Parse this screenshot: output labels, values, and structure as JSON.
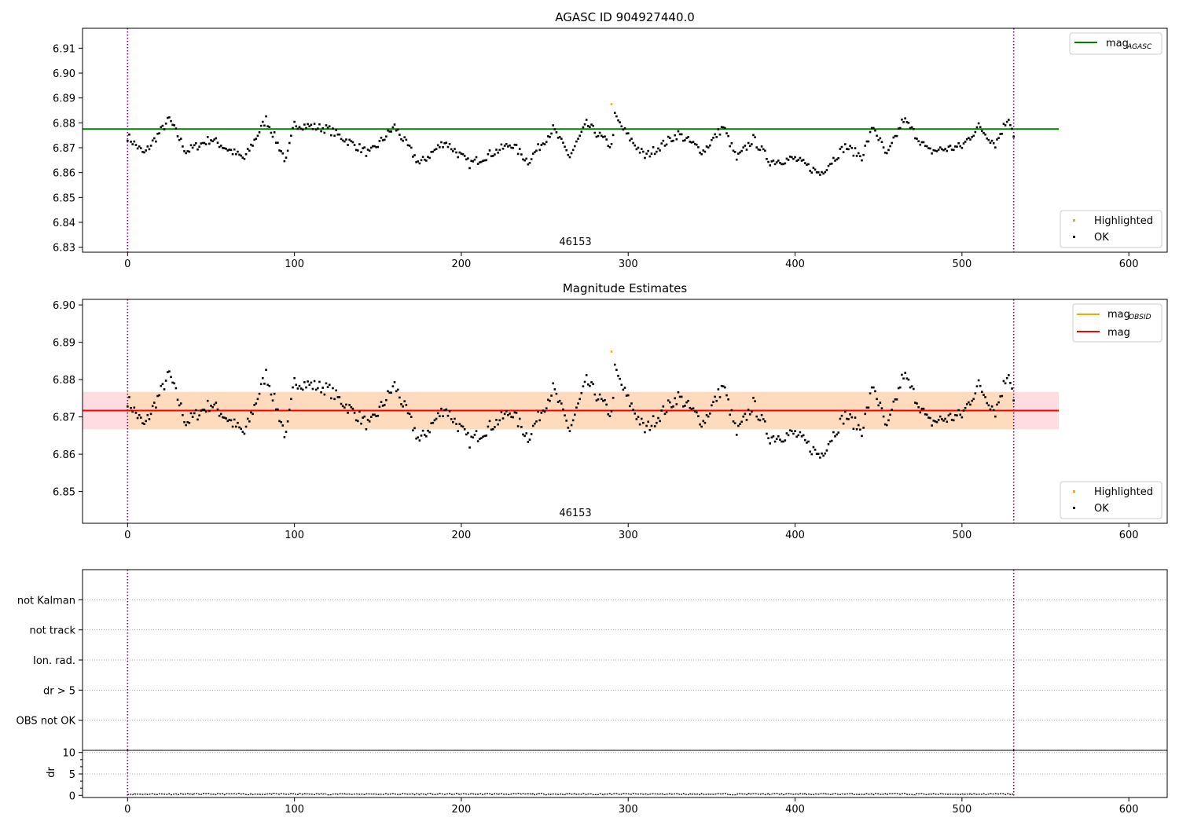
{
  "figure": {
    "background": "#ffffff"
  },
  "chart_data": [
    {
      "type": "scatter",
      "title": "AGASC ID 904927440.0",
      "xlim": [
        -27,
        623
      ],
      "ylim": [
        6.828,
        6.918
      ],
      "xticks": [
        0,
        100,
        200,
        300,
        400,
        500,
        600
      ],
      "yticks": [
        6.83,
        6.84,
        6.85,
        6.86,
        6.87,
        6.88,
        6.89,
        6.9,
        6.91
      ],
      "ytick_labels": [
        "6.83",
        "6.84",
        "6.85",
        "6.86",
        "6.87",
        "6.88",
        "6.89",
        "6.90",
        "6.91"
      ],
      "vlines": [
        0,
        531
      ],
      "vline_color": "#800080",
      "annotation": "46153",
      "lines": [
        {
          "name": "mag_AGASC",
          "label_main": "mag",
          "label_sub": "AGASC",
          "y": 6.8775,
          "x": [
            -27,
            558
          ],
          "color": "#008000"
        }
      ],
      "series": [
        {
          "name": "Highlighted",
          "color": "#ffa500",
          "x": [
            290
          ],
          "y": [
            6.8875
          ]
        },
        {
          "name": "OK",
          "color": "#000000",
          "x": [],
          "y": []
        }
      ],
      "ok_series_params": {
        "x_start": 0,
        "x_end": 531,
        "x_step": 1,
        "baseline": 6.8715,
        "anchors": [
          [
            0,
            6.8745
          ],
          [
            10,
            6.8675
          ],
          [
            25,
            6.8815
          ],
          [
            35,
            6.8685
          ],
          [
            50,
            6.8735
          ],
          [
            70,
            6.8655
          ],
          [
            83,
            6.8815
          ],
          [
            95,
            6.8645
          ],
          [
            100,
            6.8795
          ],
          [
            120,
            6.8775
          ],
          [
            145,
            6.8675
          ],
          [
            160,
            6.8785
          ],
          [
            175,
            6.8635
          ],
          [
            190,
            6.8725
          ],
          [
            205,
            6.8635
          ],
          [
            230,
            6.8715
          ],
          [
            240,
            6.8645
          ],
          [
            255,
            6.8775
          ],
          [
            265,
            6.8665
          ],
          [
            275,
            6.8795
          ],
          [
            290,
            6.8705
          ],
          [
            292,
            6.8825
          ],
          [
            300,
            6.8745
          ],
          [
            310,
            6.8665
          ],
          [
            330,
            6.8755
          ],
          [
            345,
            6.8685
          ],
          [
            357,
            6.8785
          ],
          [
            365,
            6.8655
          ],
          [
            375,
            6.8735
          ],
          [
            385,
            6.8645
          ],
          [
            400,
            6.8655
          ],
          [
            415,
            6.8595
          ],
          [
            430,
            6.8705
          ],
          [
            440,
            6.8665
          ],
          [
            447,
            6.8785
          ],
          [
            455,
            6.8665
          ],
          [
            465,
            6.8815
          ],
          [
            480,
            6.8685
          ],
          [
            500,
            6.8705
          ],
          [
            510,
            6.8785
          ],
          [
            520,
            6.8715
          ],
          [
            528,
            6.8825
          ],
          [
            531,
            6.8755
          ]
        ]
      }
    },
    {
      "type": "scatter",
      "title": "Magnitude Estimates",
      "xlim": [
        -27,
        623
      ],
      "ylim": [
        6.8415,
        6.9015
      ],
      "xticks": [
        0,
        100,
        200,
        300,
        400,
        500,
        600
      ],
      "yticks": [
        6.85,
        6.86,
        6.87,
        6.88,
        6.89,
        6.9
      ],
      "ytick_labels": [
        "6.85",
        "6.86",
        "6.87",
        "6.88",
        "6.89",
        "6.90"
      ],
      "vlines": [
        0,
        531
      ],
      "vline_color": "#800080",
      "annotation": "46153",
      "bands": [
        {
          "name": "mag range",
          "y0": 6.8667,
          "y1": 6.8767,
          "x": [
            -27,
            558
          ],
          "color": "#ffc0cb",
          "opacity": 0.55
        },
        {
          "name": "mag_OBSID range",
          "y0": 6.8667,
          "y1": 6.8767,
          "x": [
            0,
            531
          ],
          "color": "#ffdab9",
          "opacity": 0.9
        }
      ],
      "lines": [
        {
          "name": "mag_OBSID",
          "label_main": "mag",
          "label_sub": "OBSID",
          "y": 6.8717,
          "x": [
            0,
            531
          ],
          "color": "#ffa500"
        },
        {
          "name": "mag",
          "label_main": "mag",
          "label_sub": "",
          "y": 6.8717,
          "x": [
            -27,
            558
          ],
          "color": "#ff0000"
        }
      ],
      "series": [
        {
          "name": "Highlighted",
          "color": "#ffa500",
          "x": [
            290
          ],
          "y": [
            6.8875
          ]
        },
        {
          "name": "OK",
          "color": "#000000",
          "x": [],
          "y": []
        }
      ]
    },
    {
      "type": "scatter",
      "title": "",
      "categories": [
        "OBS not OK",
        "dr > 5",
        "Ion. rad.",
        "not track",
        "not Kalman"
      ],
      "xlim": [
        -27,
        623
      ],
      "vlines": [
        0,
        531
      ],
      "vline_color": "#800080",
      "grid": "horizontal dotted"
    },
    {
      "type": "line",
      "title": "",
      "ylabel": "dr",
      "xlim": [
        -27,
        623
      ],
      "ylim": [
        -0.5,
        10.5
      ],
      "xticks": [
        0,
        100,
        200,
        300,
        400,
        500,
        600
      ],
      "yticks": [
        0,
        5,
        10
      ],
      "ytick_labels": [
        "0",
        "5",
        "10"
      ],
      "vlines": [
        0,
        531
      ],
      "vline_color": "#800080",
      "series": [
        {
          "name": "dr",
          "color": "#000000",
          "x_start": 0,
          "x_end": 531,
          "y_approx": 0.3
        }
      ]
    }
  ],
  "legends": {
    "top_lines": [
      {
        "name": "mag_AGASC",
        "main": "mag",
        "sub": "AGASC",
        "color": "#008000"
      }
    ],
    "mid_lines": [
      {
        "name": "mag_OBSID",
        "main": "mag",
        "sub": "OBSID",
        "color": "#ffa500"
      },
      {
        "name": "mag",
        "main": "mag",
        "sub": "",
        "color": "#ff0000"
      }
    ],
    "markers": [
      {
        "name": "Highlighted",
        "label": "Highlighted",
        "color": "#ffa500"
      },
      {
        "name": "OK",
        "label": "OK",
        "color": "#000000"
      }
    ]
  }
}
